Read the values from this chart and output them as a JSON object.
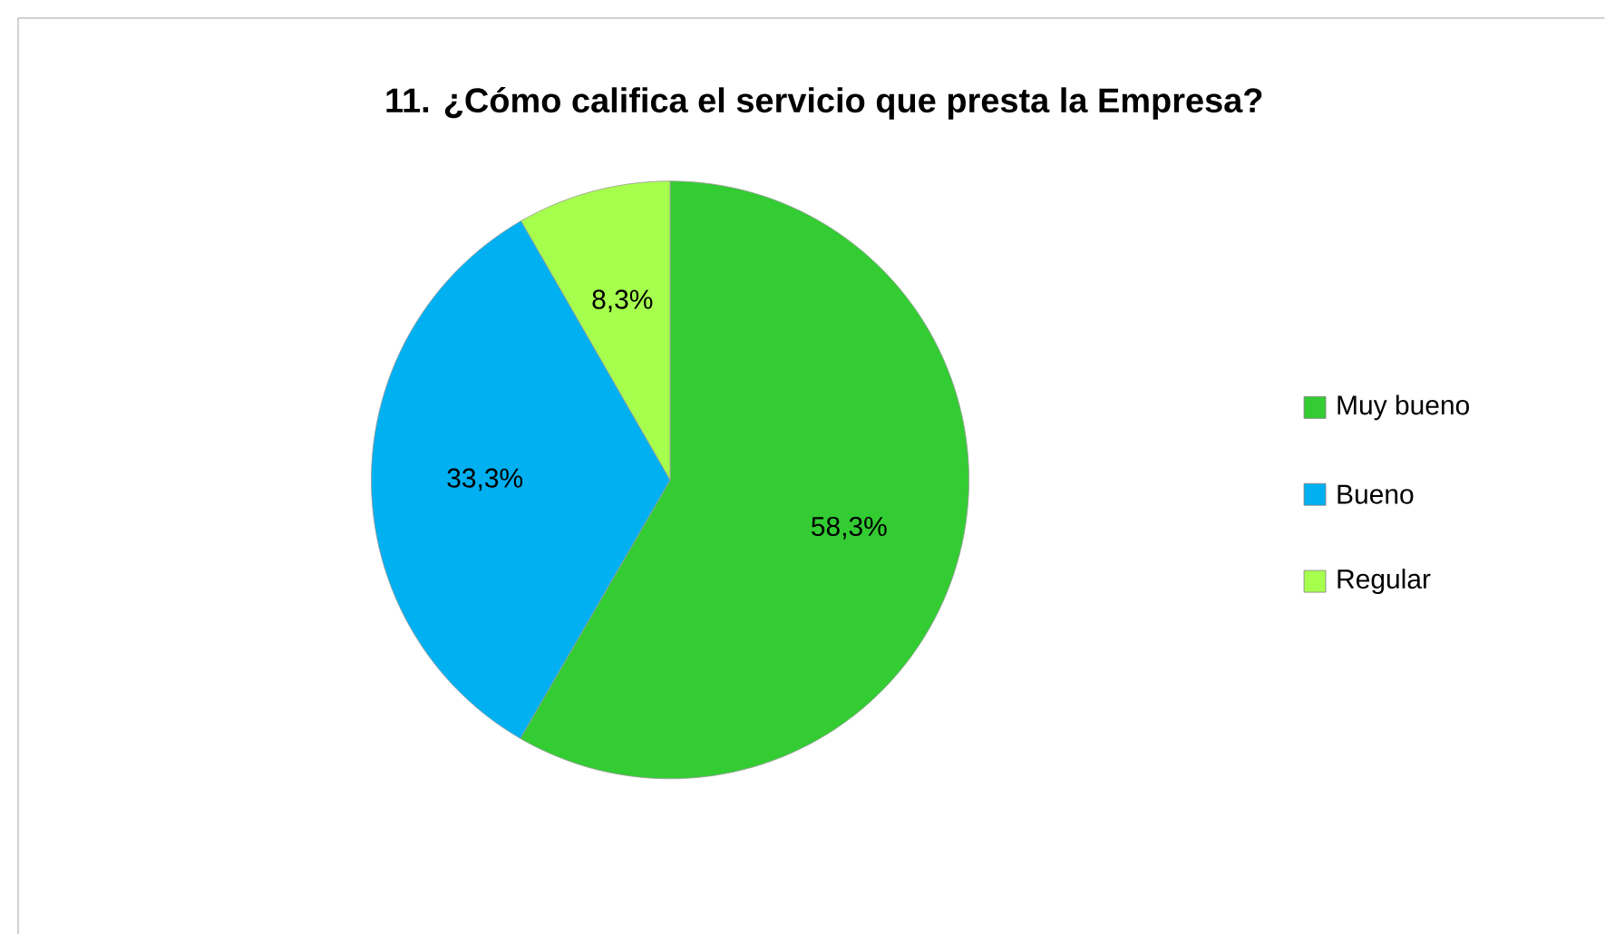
{
  "chart_data": {
    "type": "pie",
    "title": "11. ¿Cómo califica  el servicio que presta la Empresa?",
    "categories": [
      "Muy bueno",
      "Bueno",
      "Regular"
    ],
    "values": [
      58.3,
      33.3,
      8.3
    ],
    "value_labels": [
      "58,3%",
      "33,3%",
      "8,3%"
    ],
    "colors": [
      "#33cc33",
      "#00b0f0",
      "#a6ff4d"
    ],
    "legend": "right"
  }
}
